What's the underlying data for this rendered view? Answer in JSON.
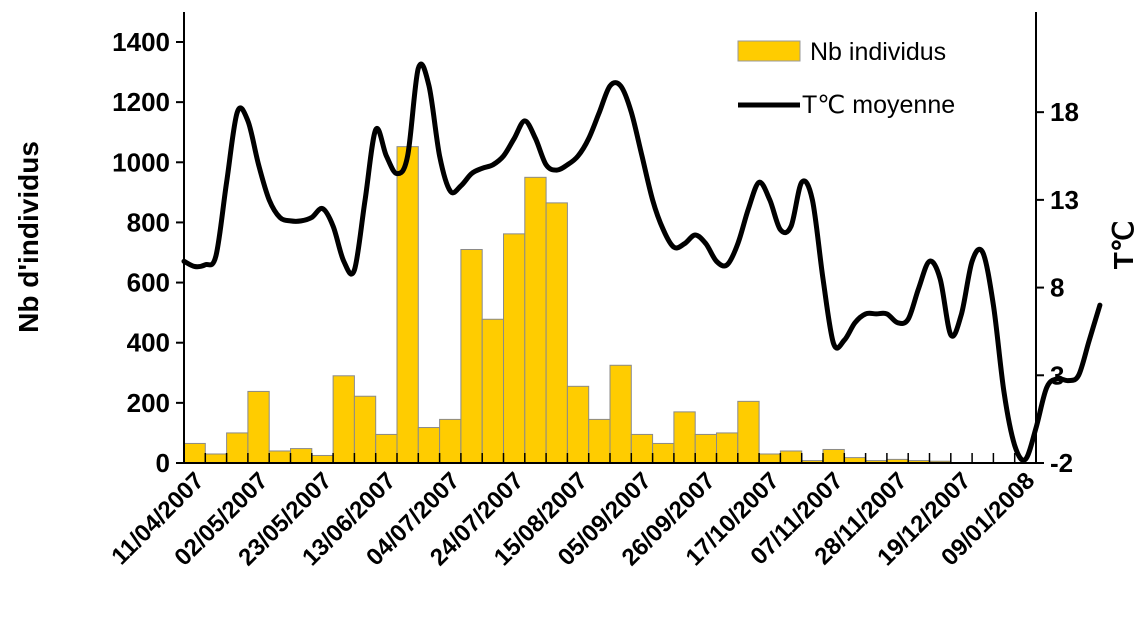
{
  "chart_data": {
    "type": "bar",
    "ylabel": "Nb d'individus",
    "y2label": "T℃",
    "ylim": [
      0,
      1400
    ],
    "y2lim": [
      -2,
      22
    ],
    "yticks": [
      "0",
      "200",
      "400",
      "600",
      "800",
      "1000",
      "1200",
      "1400"
    ],
    "y2ticks": [
      "-2",
      "3",
      "8",
      "13",
      "18"
    ],
    "date_labels": [
      "11/04/2007",
      "02/05/2007",
      "23/05/2007",
      "13/06/2007",
      "04/07/2007",
      "24/07/2007",
      "15/08/2007",
      "05/09/2007",
      "26/09/2007",
      "17/10/2007",
      "07/11/2007",
      "28/11/2007",
      "19/12/2007",
      "09/01/2008"
    ],
    "series": [
      {
        "name": "Nb individus",
        "kind": "bar",
        "color": "#FFCC00",
        "values": [
          65,
          30,
          100,
          238,
          40,
          48,
          25,
          290,
          222,
          95,
          1052,
          118,
          145,
          710,
          478,
          762,
          950,
          865,
          255,
          145,
          325,
          95,
          65,
          170,
          95,
          100,
          205,
          30,
          40,
          8,
          45,
          18,
          8,
          12,
          8,
          6,
          0,
          0,
          0,
          0
        ]
      },
      {
        "name": "T℃ moyenne",
        "kind": "line",
        "color": "#000000",
        "values": [
          [
            0.0,
            9.5
          ],
          [
            0.5,
            9.2
          ],
          [
            1.0,
            9.3
          ],
          [
            1.5,
            9.8
          ],
          [
            2.0,
            14.0
          ],
          [
            2.5,
            18.0
          ],
          [
            3.0,
            17.5
          ],
          [
            3.5,
            15.0
          ],
          [
            4.0,
            13.0
          ],
          [
            4.5,
            12.0
          ],
          [
            5.0,
            11.8
          ],
          [
            5.5,
            11.8
          ],
          [
            6.0,
            12.0
          ],
          [
            6.5,
            12.5
          ],
          [
            7.0,
            11.5
          ],
          [
            7.5,
            9.5
          ],
          [
            8.0,
            9.0
          ],
          [
            8.5,
            13.0
          ],
          [
            9.0,
            17.0
          ],
          [
            9.5,
            15.5
          ],
          [
            10.0,
            14.5
          ],
          [
            10.5,
            15.5
          ],
          [
            11.0,
            20.5
          ],
          [
            11.5,
            19.5
          ],
          [
            12.0,
            15.5
          ],
          [
            12.5,
            13.5
          ],
          [
            13.0,
            13.8
          ],
          [
            13.5,
            14.5
          ],
          [
            14.0,
            14.8
          ],
          [
            14.5,
            15.0
          ],
          [
            15.0,
            15.5
          ],
          [
            15.5,
            16.5
          ],
          [
            16.0,
            17.5
          ],
          [
            16.5,
            16.5
          ],
          [
            17.0,
            15.0
          ],
          [
            17.5,
            14.7
          ],
          [
            18.0,
            15.0
          ],
          [
            18.5,
            15.5
          ],
          [
            19.0,
            16.5
          ],
          [
            19.5,
            18.0
          ],
          [
            20.0,
            19.5
          ],
          [
            20.5,
            19.5
          ],
          [
            21.0,
            18.0
          ],
          [
            21.5,
            15.5
          ],
          [
            22.0,
            13.0
          ],
          [
            22.5,
            11.3
          ],
          [
            23.0,
            10.3
          ],
          [
            23.5,
            10.5
          ],
          [
            24.0,
            11.0
          ],
          [
            24.5,
            10.5
          ],
          [
            25.0,
            9.5
          ],
          [
            25.5,
            9.3
          ],
          [
            26.0,
            10.5
          ],
          [
            26.5,
            12.5
          ],
          [
            27.0,
            14.0
          ],
          [
            27.5,
            13.0
          ],
          [
            28.0,
            11.3
          ],
          [
            28.5,
            11.5
          ],
          [
            29.0,
            14.0
          ],
          [
            29.5,
            13.0
          ],
          [
            30.0,
            8.5
          ],
          [
            30.5,
            4.8
          ],
          [
            31.0,
            5.0
          ],
          [
            31.5,
            6.0
          ],
          [
            32.0,
            6.5
          ],
          [
            32.5,
            6.5
          ],
          [
            33.0,
            6.5
          ],
          [
            33.5,
            6.0
          ],
          [
            34.0,
            6.2
          ],
          [
            34.5,
            8.0
          ],
          [
            35.0,
            9.5
          ],
          [
            35.5,
            8.5
          ],
          [
            36.0,
            5.3
          ],
          [
            36.5,
            6.5
          ],
          [
            37.0,
            9.5
          ],
          [
            37.5,
            10.0
          ],
          [
            38.0,
            7.0
          ],
          [
            38.5,
            2.0
          ],
          [
            39.0,
            -1.0
          ],
          [
            39.5,
            -1.8
          ],
          [
            40.0,
            0.0
          ],
          [
            40.5,
            2.3
          ],
          [
            41.0,
            2.8
          ],
          [
            41.5,
            2.7
          ],
          [
            42.0,
            3.0
          ],
          [
            42.5,
            5.0
          ],
          [
            43.0,
            7.0
          ]
        ]
      }
    ],
    "legend": {
      "position": "top-right"
    }
  }
}
